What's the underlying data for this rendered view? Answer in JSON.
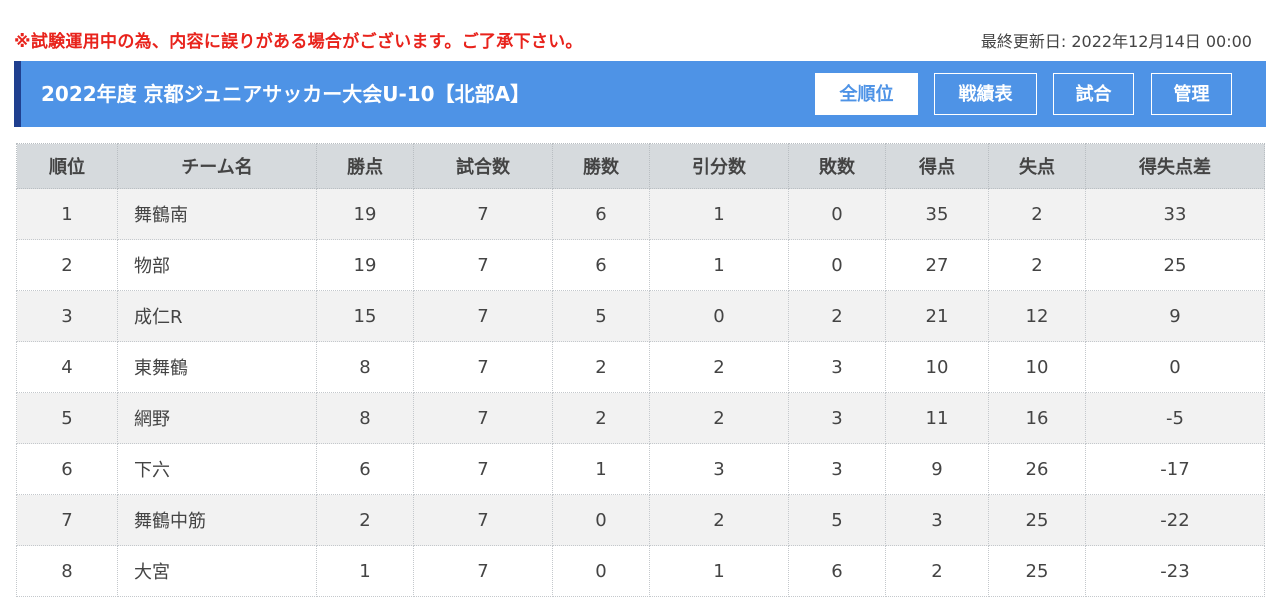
{
  "notice": "※試験運用中の為、内容に誤りがある場合がございます。ご了承下さい。",
  "updated": "最終更新日: 2022年12月14日 00:00",
  "header": {
    "title": "2022年度 京都ジュニアサッカー大会U-10【北部A】",
    "nav": [
      "全順位",
      "戦績表",
      "試合",
      "管理"
    ]
  },
  "accent_color": "#4e93e6",
  "table": {
    "columns": [
      "順位",
      "チーム名",
      "勝点",
      "試合数",
      "勝数",
      "引分数",
      "敗数",
      "得点",
      "失点",
      "得失点差"
    ],
    "rows": [
      [
        "1",
        "舞鶴南",
        "19",
        "7",
        "6",
        "1",
        "0",
        "35",
        "2",
        "33"
      ],
      [
        "2",
        "物部",
        "19",
        "7",
        "6",
        "1",
        "0",
        "27",
        "2",
        "25"
      ],
      [
        "3",
        "成仁R",
        "15",
        "7",
        "5",
        "0",
        "2",
        "21",
        "12",
        "9"
      ],
      [
        "4",
        "東舞鶴",
        "8",
        "7",
        "2",
        "2",
        "3",
        "10",
        "10",
        "0"
      ],
      [
        "5",
        "網野",
        "8",
        "7",
        "2",
        "2",
        "3",
        "11",
        "16",
        "-5"
      ],
      [
        "6",
        "下六",
        "6",
        "7",
        "1",
        "3",
        "3",
        "9",
        "26",
        "-17"
      ],
      [
        "7",
        "舞鶴中筋",
        "2",
        "7",
        "0",
        "2",
        "5",
        "3",
        "25",
        "-22"
      ],
      [
        "8",
        "大宮",
        "1",
        "7",
        "0",
        "1",
        "6",
        "2",
        "25",
        "-23"
      ]
    ]
  }
}
